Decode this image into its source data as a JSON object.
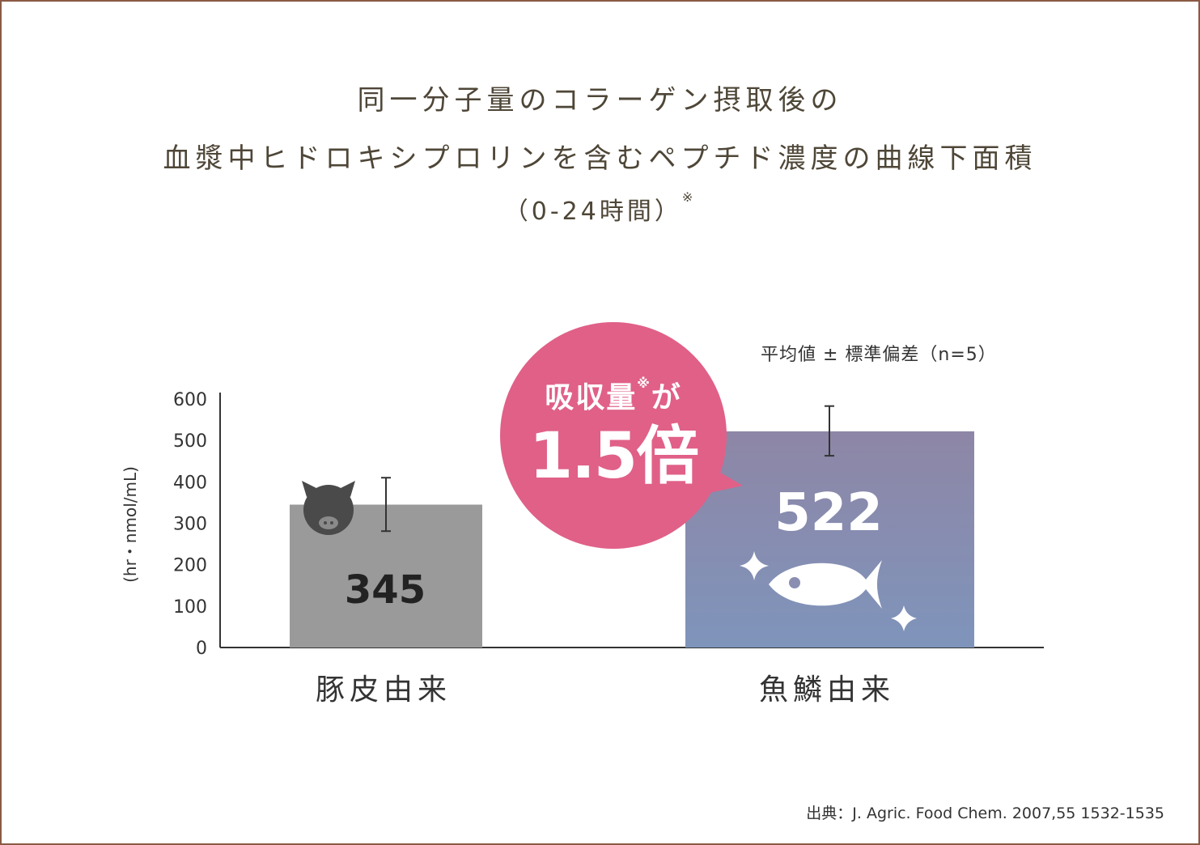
{
  "title": {
    "line1": "同一分子量のコラーゲン摂取後の",
    "line2": "血漿中ヒドロキシプロリンを含むペプチド濃度の曲線下面積",
    "line3": "（0-24時間）",
    "line3_mark": "※"
  },
  "note": "平均値 ± 標準偏差（n=5）",
  "source": "出典：J. Agric. Food Chem. 2007,55 1532-1535",
  "callout": {
    "line1": "吸収量",
    "mark": "※",
    "line1_suffix": "が",
    "line2": "1.5倍",
    "color": "#e06088"
  },
  "chart_data": {
    "type": "bar",
    "categories": [
      "豚皮由来",
      "魚鱗由来"
    ],
    "values": [
      345,
      522
    ],
    "error_high": [
      410,
      583
    ],
    "error_low": [
      281,
      463
    ],
    "value_labels": [
      "345",
      "522"
    ],
    "ylabel": "(hr・nmol/mL)",
    "ylim": [
      0,
      600
    ],
    "yticks": [
      0,
      100,
      200,
      300,
      400,
      500,
      600
    ],
    "ytick_labels": [
      "0",
      "100",
      "200",
      "300",
      "400",
      "500",
      "600"
    ],
    "grid": false,
    "colors": [
      "#999a99",
      "#8a88b0"
    ],
    "icons": [
      "pig-icon",
      "fish-icon"
    ]
  }
}
